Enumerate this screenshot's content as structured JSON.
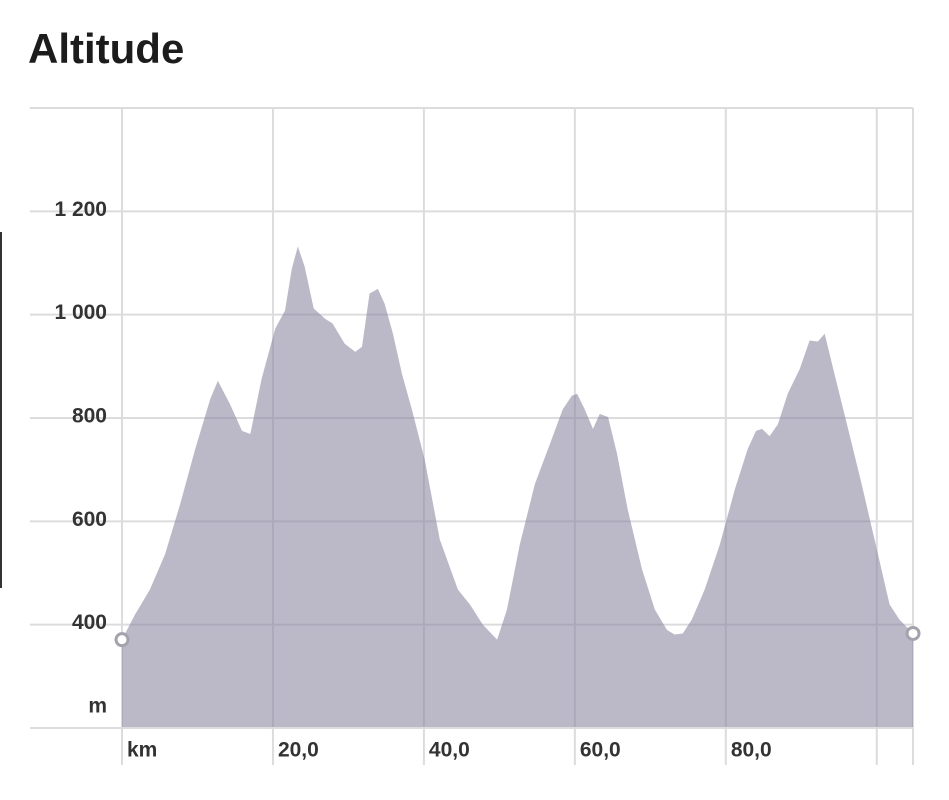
{
  "chart_data": {
    "type": "area",
    "title": "Altitude",
    "x_label": "km",
    "y_label": "m",
    "color": "#8a879e",
    "grid": true,
    "xlim": [
      0,
      104.8
    ],
    "ylim": [
      200,
      1400
    ],
    "xticks": [
      {
        "value": 20,
        "label": "20,0"
      },
      {
        "value": 40,
        "label": "40,0"
      },
      {
        "value": 60,
        "label": "60,0"
      },
      {
        "value": 80,
        "label": "80,0"
      }
    ],
    "minor_xticks": [
      0,
      100
    ],
    "yticks": [
      400,
      600,
      800,
      {
        "value": 1000,
        "label": "1 000"
      },
      {
        "value": 1200,
        "label": "1 200"
      }
    ],
    "x": [
      0,
      1.7,
      3.7,
      5.7,
      7.7,
      9.7,
      11.7,
      12.7,
      14.3,
      15.9,
      17.0,
      18.5,
      20.3,
      21.6,
      22.5,
      23.3,
      24.2,
      25.4,
      26.9,
      27.9,
      29.5,
      30.9,
      31.8,
      32.8,
      33.9,
      34.8,
      35.9,
      37.1,
      38.4,
      40.1,
      42.1,
      44.5,
      46.1,
      47.8,
      49.7,
      51.0,
      52.7,
      54.7,
      56.7,
      58.4,
      59.6,
      60.3,
      61.3,
      62.4,
      63.3,
      64.4,
      65.6,
      67.0,
      68.9,
      70.6,
      72.2,
      73.2,
      74.3,
      75.5,
      77.2,
      79.2,
      81.2,
      82.9,
      84.0,
      84.8,
      85.8,
      86.9,
      88.2,
      89.8,
      91.1,
      92.2,
      93.1,
      94.4,
      96.2,
      98.0,
      99.7,
      101.7,
      103.0,
      104.8
    ],
    "values": [
      371,
      419,
      468,
      536,
      633,
      740,
      837,
      872,
      827,
      775,
      769,
      876,
      973,
      1008,
      1089,
      1132,
      1093,
      1012,
      992,
      983,
      944,
      928,
      938,
      1041,
      1050,
      1021,
      963,
      885,
      817,
      720,
      565,
      468,
      439,
      400,
      371,
      429,
      555,
      672,
      750,
      817,
      843,
      847,
      817,
      779,
      808,
      802,
      730,
      623,
      507,
      429,
      390,
      381,
      383,
      410,
      468,
      555,
      662,
      740,
      775,
      779,
      765,
      788,
      847,
      895,
      950,
      948,
      963,
      885,
      779,
      672,
      565,
      439,
      410,
      383
    ]
  }
}
